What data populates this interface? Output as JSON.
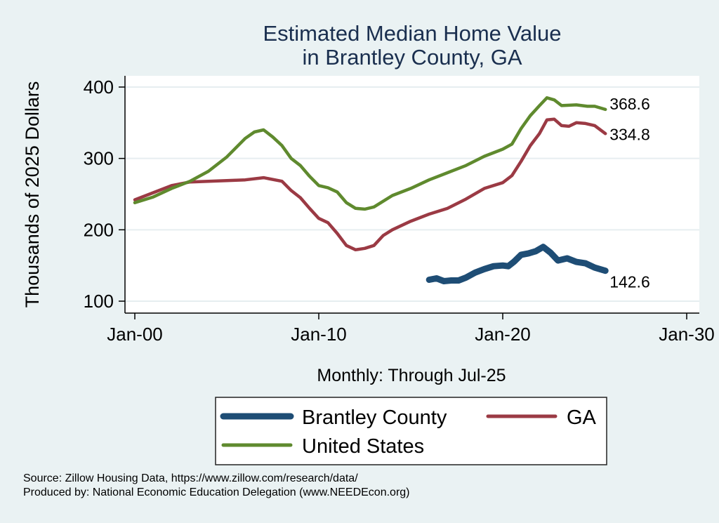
{
  "chart_data": {
    "type": "line",
    "title": [
      "Estimated Median Home Value",
      "in Brantley County, GA"
    ],
    "xlabel": "Monthly: Through Jul-25",
    "ylabel": "Thousands of 2025 Dollars",
    "xlim": [
      2000,
      2030
    ],
    "ylim": [
      100,
      400
    ],
    "xticks": [
      {
        "value": 2000,
        "label": "Jan-00"
      },
      {
        "value": 2010,
        "label": "Jan-10"
      },
      {
        "value": 2020,
        "label": "Jan-20"
      },
      {
        "value": 2030,
        "label": "Jan-30"
      }
    ],
    "yticks": [
      {
        "value": 100,
        "label": "100"
      },
      {
        "value": 200,
        "label": "200"
      },
      {
        "value": 300,
        "label": "300"
      },
      {
        "value": 400,
        "label": "400"
      }
    ],
    "series": [
      {
        "name": "Brantley County",
        "color": "#1e4d75",
        "end_label": "142.6",
        "points": [
          [
            2016.0,
            130
          ],
          [
            2016.4,
            132
          ],
          [
            2016.8,
            128
          ],
          [
            2017.2,
            129
          ],
          [
            2017.6,
            129
          ],
          [
            2018.0,
            133
          ],
          [
            2018.5,
            140
          ],
          [
            2019.0,
            145
          ],
          [
            2019.5,
            149
          ],
          [
            2020.0,
            150
          ],
          [
            2020.3,
            149
          ],
          [
            2020.6,
            155
          ],
          [
            2021.0,
            165
          ],
          [
            2021.4,
            167
          ],
          [
            2021.8,
            170
          ],
          [
            2022.2,
            176
          ],
          [
            2022.6,
            168
          ],
          [
            2023.0,
            157
          ],
          [
            2023.5,
            160
          ],
          [
            2024.0,
            155
          ],
          [
            2024.5,
            153
          ],
          [
            2025.0,
            147
          ],
          [
            2025.58,
            142.6
          ]
        ]
      },
      {
        "name": "GA",
        "color": "#9b3a44",
        "end_label": "334.8",
        "points": [
          [
            2000.0,
            242
          ],
          [
            2001.0,
            252
          ],
          [
            2002.0,
            262
          ],
          [
            2003.0,
            267
          ],
          [
            2004.0,
            268
          ],
          [
            2005.0,
            269
          ],
          [
            2006.0,
            270
          ],
          [
            2007.0,
            273
          ],
          [
            2008.0,
            268
          ],
          [
            2008.5,
            255
          ],
          [
            2009.0,
            245
          ],
          [
            2009.5,
            230
          ],
          [
            2010.0,
            216
          ],
          [
            2010.5,
            210
          ],
          [
            2011.0,
            195
          ],
          [
            2011.5,
            178
          ],
          [
            2012.0,
            172
          ],
          [
            2012.5,
            174
          ],
          [
            2013.0,
            178
          ],
          [
            2013.5,
            192
          ],
          [
            2014.0,
            200
          ],
          [
            2015.0,
            212
          ],
          [
            2016.0,
            222
          ],
          [
            2017.0,
            230
          ],
          [
            2018.0,
            243
          ],
          [
            2019.0,
            258
          ],
          [
            2020.0,
            266
          ],
          [
            2020.5,
            276
          ],
          [
            2021.0,
            296
          ],
          [
            2021.5,
            318
          ],
          [
            2022.0,
            335
          ],
          [
            2022.4,
            354
          ],
          [
            2022.8,
            355
          ],
          [
            2023.2,
            346
          ],
          [
            2023.6,
            345
          ],
          [
            2024.0,
            350
          ],
          [
            2024.5,
            349
          ],
          [
            2025.0,
            346
          ],
          [
            2025.58,
            334.8
          ]
        ]
      },
      {
        "name": "United States",
        "color": "#5f8a2e",
        "end_label": "368.6",
        "points": [
          [
            2000.0,
            238
          ],
          [
            2001.0,
            246
          ],
          [
            2002.0,
            258
          ],
          [
            2003.0,
            268
          ],
          [
            2004.0,
            282
          ],
          [
            2005.0,
            302
          ],
          [
            2006.0,
            328
          ],
          [
            2006.5,
            337
          ],
          [
            2007.0,
            340
          ],
          [
            2007.5,
            330
          ],
          [
            2008.0,
            318
          ],
          [
            2008.5,
            300
          ],
          [
            2009.0,
            290
          ],
          [
            2009.5,
            275
          ],
          [
            2010.0,
            262
          ],
          [
            2010.5,
            259
          ],
          [
            2011.0,
            253
          ],
          [
            2011.5,
            238
          ],
          [
            2012.0,
            230
          ],
          [
            2012.5,
            229
          ],
          [
            2013.0,
            232
          ],
          [
            2014.0,
            248
          ],
          [
            2015.0,
            258
          ],
          [
            2016.0,
            270
          ],
          [
            2017.0,
            280
          ],
          [
            2018.0,
            290
          ],
          [
            2019.0,
            303
          ],
          [
            2020.0,
            313
          ],
          [
            2020.5,
            320
          ],
          [
            2021.0,
            342
          ],
          [
            2021.5,
            360
          ],
          [
            2022.0,
            374
          ],
          [
            2022.4,
            385
          ],
          [
            2022.8,
            382
          ],
          [
            2023.2,
            374
          ],
          [
            2024.0,
            375
          ],
          [
            2024.6,
            373
          ],
          [
            2025.0,
            373
          ],
          [
            2025.58,
            368.6
          ]
        ]
      }
    ],
    "legend": {
      "placement": "bottom",
      "items": [
        {
          "label": "Brantley County",
          "color": "#1e4d75"
        },
        {
          "label": "GA",
          "color": "#9b3a44"
        },
        {
          "label": "United States",
          "color": "#5f8a2e"
        }
      ]
    }
  },
  "footer": {
    "source": "Source: Zillow Housing Data, https://www.zillow.com/research/data/",
    "produced": "Produced by: National Economic Education Delegation (www.NEEDEcon.org)"
  }
}
